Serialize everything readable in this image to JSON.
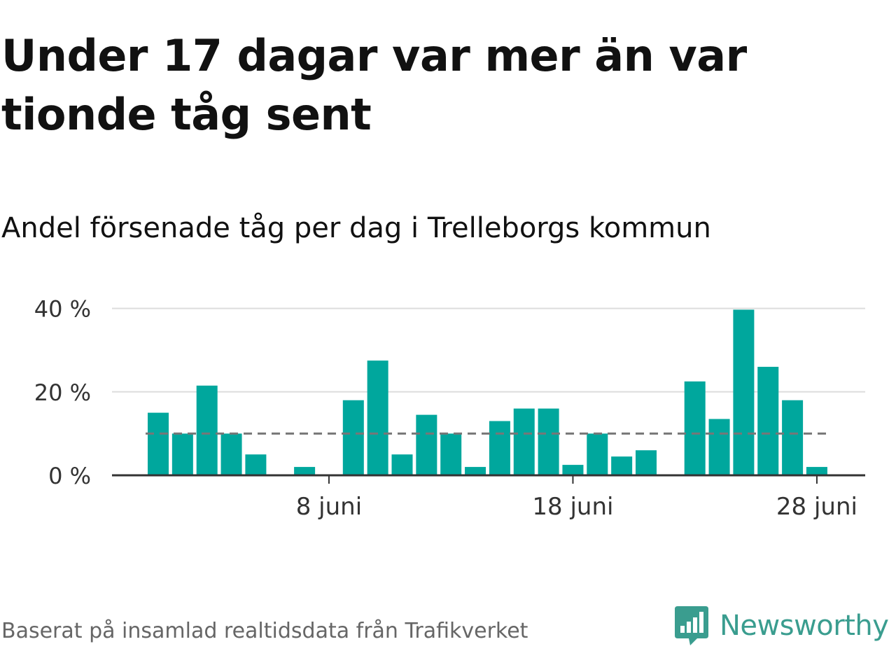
{
  "header": {
    "title": "Under 17 dagar var mer än var tionde tåg sent",
    "subtitle": "Andel försenade tåg per dag i Trelleborgs kommun"
  },
  "footer": {
    "source": "Baserat på insamlad realtidsdata från Trafikverket",
    "brand": "Newsworthy",
    "brand_icon": "newsworthy-logo-icon"
  },
  "colors": {
    "bar": "#00a79d",
    "reference_line": "#777777",
    "grid": "#dddddd",
    "axis": "#333333",
    "brand": "#3a9d8f"
  },
  "chart_data": {
    "type": "bar",
    "x": [
      "1 juni",
      "2 juni",
      "3 juni",
      "4 juni",
      "5 juni",
      "6 juni",
      "7 juni",
      "8 juni",
      "9 juni",
      "10 juni",
      "11 juni",
      "12 juni",
      "13 juni",
      "14 juni",
      "15 juni",
      "16 juni",
      "17 juni",
      "18 juni",
      "19 juni",
      "20 juni",
      "21 juni",
      "22 juni",
      "23 juni",
      "24 juni",
      "25 juni",
      "26 juni",
      "27 juni",
      "28 juni",
      "29 juni"
    ],
    "values": [
      15,
      10,
      21.5,
      10,
      5,
      0,
      2,
      0,
      18,
      27.5,
      5,
      14.5,
      10,
      2,
      13,
      16,
      16,
      2.5,
      10,
      4.5,
      6,
      0,
      22.5,
      13.5,
      39.7,
      26,
      18,
      2,
      null
    ],
    "reference_value": 10,
    "x_ticks": [
      "8 juni",
      "18 juni",
      "28 juni"
    ],
    "y_ticks": [
      "0 %",
      "20 %",
      "40 %"
    ],
    "y_tick_values": [
      0,
      20,
      40
    ],
    "ylim": [
      0,
      42
    ],
    "grid": true,
    "legend": "none"
  }
}
